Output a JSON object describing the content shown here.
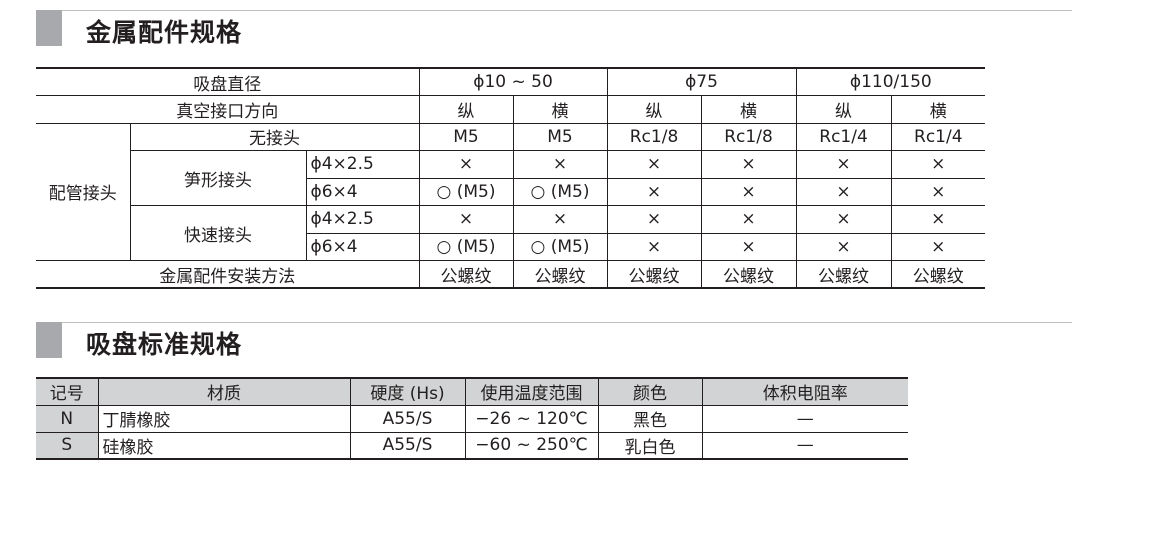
{
  "section1": {
    "title": "金属配件规格",
    "header_row1": [
      "吸盘直径",
      "ϕ10 ~ 50",
      "ϕ75",
      "ϕ110/150"
    ],
    "header_row2": [
      "真空接口方向",
      "纵",
      "横",
      "纵",
      "横",
      "纵",
      "横"
    ],
    "group_label": "配管接头",
    "no_fitting": {
      "label": "无接头",
      "values": [
        "M5",
        "M5",
        "Rc1/8",
        "Rc1/8",
        "Rc1/4",
        "Rc1/4"
      ]
    },
    "barb": {
      "label": "笋形接头",
      "rows": [
        {
          "size": "ϕ4×2.5",
          "values": [
            "×",
            "×",
            "×",
            "×",
            "×",
            "×"
          ]
        },
        {
          "size": "ϕ6×4",
          "values": [
            "○ (M5)",
            "○ (M5)",
            "×",
            "×",
            "×",
            "×"
          ]
        }
      ]
    },
    "quick": {
      "label": "快速接头",
      "rows": [
        {
          "size": "ϕ4×2.5",
          "values": [
            "×",
            "×",
            "×",
            "×",
            "×",
            "×"
          ]
        },
        {
          "size": "ϕ6×4",
          "values": [
            "○ (M5)",
            "○ (M5)",
            "×",
            "×",
            "×",
            "×"
          ]
        }
      ]
    },
    "mount": {
      "label": "金属配件安装方法",
      "values": [
        "公螺纹",
        "公螺纹",
        "公螺纹",
        "公螺纹",
        "公螺纹",
        "公螺纹"
      ]
    }
  },
  "section2": {
    "title": "吸盘标准规格",
    "headers": [
      "记号",
      "材质",
      "硬度 (Hs)",
      "使用温度范围",
      "颜色",
      "体积电阻率"
    ],
    "rows": [
      [
        "N",
        "丁腈橡胶",
        "A55/S",
        "−26 ~ 120℃",
        "黑色",
        "—"
      ],
      [
        "S",
        "硅橡胶",
        "A55/S",
        "−60 ~ 250℃",
        "乳白色",
        "—"
      ]
    ]
  }
}
